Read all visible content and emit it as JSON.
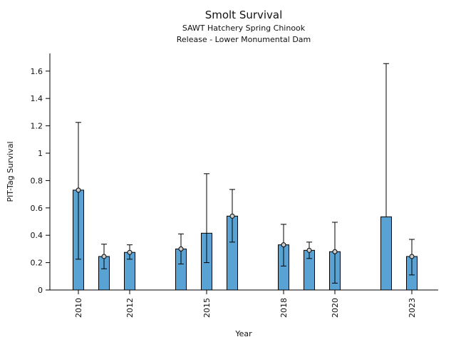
{
  "chart_data": {
    "type": "bar",
    "title": "Smolt Survival",
    "subtitle1": "SAWT Hatchery Spring Chinook",
    "subtitle2": "Release - Lower Monumental Dam",
    "xlabel": "Year",
    "ylabel": "PIT-Tag Survival",
    "x_ticks": [
      2010,
      2012,
      2015,
      2018,
      2020,
      2023
    ],
    "y_ticks": [
      0,
      0.2,
      0.4,
      0.6,
      0.8,
      1,
      1.2,
      1.4,
      1.6
    ],
    "ylim": [
      0,
      1.72
    ],
    "bar_color": "#58a3d4",
    "bar_edge_color": "#000000",
    "error_bar_color": "#000000",
    "marker_fill_color": "#cccccc",
    "bars": [
      {
        "year": 2010,
        "value": 0.73,
        "err_lo": 0.225,
        "err_hi": 1.225,
        "marker": true
      },
      {
        "year": 2011,
        "value": 0.245,
        "err_lo": 0.155,
        "err_hi": 0.335,
        "marker": true
      },
      {
        "year": 2012,
        "value": 0.275,
        "err_lo": 0.225,
        "err_hi": 0.33,
        "marker": true
      },
      {
        "year": 2014,
        "value": 0.3,
        "err_lo": 0.19,
        "err_hi": 0.41,
        "marker": true
      },
      {
        "year": 2015,
        "value": 0.415,
        "err_lo": 0.2,
        "err_hi": 0.85,
        "marker": false
      },
      {
        "year": 2016,
        "value": 0.54,
        "err_lo": 0.35,
        "err_hi": 0.735,
        "marker": true
      },
      {
        "year": 2018,
        "value": 0.33,
        "err_lo": 0.175,
        "err_hi": 0.48,
        "marker": true
      },
      {
        "year": 2019,
        "value": 0.29,
        "err_lo": 0.23,
        "err_hi": 0.35,
        "marker": true
      },
      {
        "year": 2020,
        "value": 0.28,
        "err_lo": 0.05,
        "err_hi": 0.495,
        "marker": true
      },
      {
        "year": 2022,
        "value": 0.535,
        "err_lo": 0.535,
        "err_hi": 1.655,
        "marker": false
      },
      {
        "year": 2023,
        "value": 0.245,
        "err_lo": 0.11,
        "err_hi": 0.37,
        "marker": true
      }
    ]
  }
}
